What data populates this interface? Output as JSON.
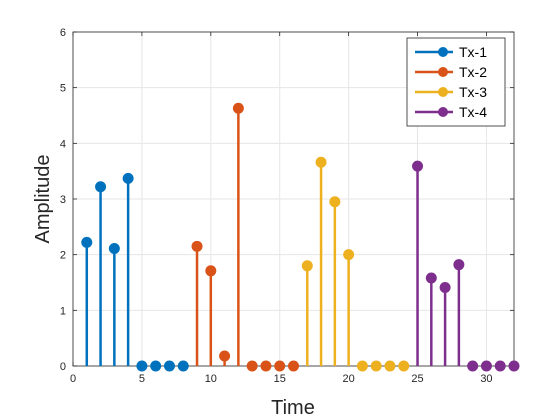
{
  "chart_data": {
    "type": "stem",
    "xlabel": "Time",
    "ylabel": "Amplitude",
    "xlim": [
      0,
      32
    ],
    "ylim": [
      0,
      6
    ],
    "xticks": [
      0,
      5,
      10,
      15,
      20,
      25,
      30
    ],
    "yticks": [
      0,
      1,
      2,
      3,
      4,
      5,
      6
    ],
    "grid": true,
    "legend_position": "top-right",
    "series": [
      {
        "name": "Tx-1",
        "color": "#0072BD",
        "x": [
          1,
          2,
          3,
          4,
          5,
          6,
          7,
          8
        ],
        "values": [
          2.22,
          3.22,
          2.11,
          3.37,
          0,
          0,
          0,
          0
        ]
      },
      {
        "name": "Tx-2",
        "color": "#D95319",
        "x": [
          9,
          10,
          11,
          12,
          13,
          14,
          15,
          16
        ],
        "values": [
          2.15,
          1.71,
          0.18,
          4.63,
          0,
          0,
          0,
          0
        ]
      },
      {
        "name": "Tx-3",
        "color": "#EDB120",
        "x": [
          17,
          18,
          19,
          20,
          21,
          22,
          23,
          24
        ],
        "values": [
          1.8,
          3.66,
          2.95,
          2.0,
          0,
          0,
          0,
          0
        ]
      },
      {
        "name": "Tx-4",
        "color": "#7E2F8E",
        "x": [
          25,
          26,
          27,
          28,
          29,
          30,
          31,
          32
        ],
        "values": [
          3.59,
          1.58,
          1.41,
          1.82,
          0,
          0,
          0,
          0
        ]
      }
    ]
  }
}
